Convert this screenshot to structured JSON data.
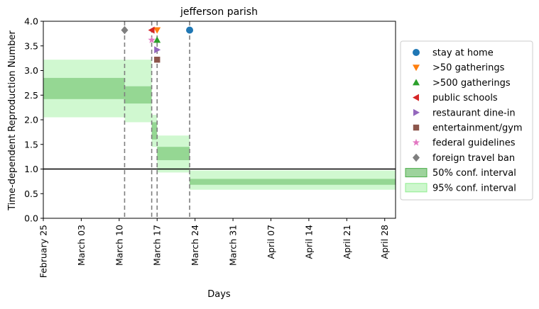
{
  "chart_data": {
    "type": "line",
    "title": "jefferson parish",
    "xlabel": "Days",
    "ylabel": "Time-dependent Reproduction Number",
    "ylim": [
      0,
      4.0
    ],
    "xlim": [
      "2020-02-25",
      "2020-04-30"
    ],
    "y_ticks": [
      0.0,
      0.5,
      1.0,
      1.5,
      2.0,
      2.5,
      3.0,
      3.5,
      4.0
    ],
    "y_tick_labels": [
      "0.0",
      "0.5",
      "1.0",
      "1.5",
      "2.0",
      "2.5",
      "3.0",
      "3.5",
      "4.0"
    ],
    "x_ticks": [
      "2020-02-25",
      "2020-03-03",
      "2020-03-10",
      "2020-03-17",
      "2020-03-24",
      "2020-03-31",
      "2020-04-07",
      "2020-04-14",
      "2020-04-21",
      "2020-04-28"
    ],
    "x_tick_labels": [
      "February 25",
      "March 03",
      "March 10",
      "March 17",
      "March 24",
      "March 31",
      "April 07",
      "April 14",
      "April 21",
      "April 28"
    ],
    "reference_line": {
      "y": 1.0,
      "color": "#000000"
    },
    "grid": false,
    "legend_position": "outside-right",
    "intervals": [
      {
        "start": "2020-02-25",
        "end": "2020-03-11",
        "ci50": [
          2.42,
          2.85
        ],
        "ci95": [
          2.05,
          3.22
        ]
      },
      {
        "start": "2020-03-11",
        "end": "2020-03-16",
        "ci50": [
          2.33,
          2.68
        ],
        "ci95": [
          1.95,
          3.22
        ]
      },
      {
        "start": "2020-03-16",
        "end": "2020-03-17",
        "ci50": [
          1.6,
          1.95
        ],
        "ci95": [
          1.45,
          2.1
        ]
      },
      {
        "start": "2020-03-17",
        "end": "2020-03-23",
        "ci50": [
          1.18,
          1.45
        ],
        "ci95": [
          0.93,
          1.68
        ]
      },
      {
        "start": "2020-03-23",
        "end": "2020-04-30",
        "ci50": [
          0.68,
          0.8
        ],
        "ci95": [
          0.58,
          0.97
        ]
      }
    ],
    "intervention_lines": [
      "2020-03-11",
      "2020-03-16",
      "2020-03-17",
      "2020-03-23"
    ],
    "markers": [
      {
        "name": "stay at home",
        "date": "2020-03-23",
        "y": 3.82,
        "symbol": "circle",
        "color": "#1f77b4"
      },
      {
        "name": ">50 gatherings",
        "date": "2020-03-17",
        "y": 3.82,
        "symbol": "triangle-down",
        "color": "#ff7f0e"
      },
      {
        "name": ">500 gatherings",
        "date": "2020-03-17",
        "y": 3.62,
        "symbol": "triangle-up",
        "color": "#2ca02c"
      },
      {
        "name": "public schools",
        "date": "2020-03-16",
        "y": 3.82,
        "symbol": "triangle-left",
        "color": "#d62728"
      },
      {
        "name": "restaurant dine-in",
        "date": "2020-03-17",
        "y": 3.42,
        "symbol": "triangle-right",
        "color": "#9467bd"
      },
      {
        "name": "entertainment/gym",
        "date": "2020-03-17",
        "y": 3.22,
        "symbol": "square",
        "color": "#8c564b"
      },
      {
        "name": "federal guidelines",
        "date": "2020-03-16",
        "y": 3.62,
        "symbol": "star",
        "color": "#e377c2"
      },
      {
        "name": "foreign travel ban",
        "date": "2020-03-11",
        "y": 3.82,
        "symbol": "diamond",
        "color": "#7f7f7f"
      }
    ],
    "legend": [
      {
        "label": "stay at home",
        "kind": "marker",
        "symbol": "circle",
        "color": "#1f77b4"
      },
      {
        "label": ">50 gatherings",
        "kind": "marker",
        "symbol": "triangle-down",
        "color": "#ff7f0e"
      },
      {
        "label": ">500 gatherings",
        "kind": "marker",
        "symbol": "triangle-up",
        "color": "#2ca02c"
      },
      {
        "label": "public schools",
        "kind": "marker",
        "symbol": "triangle-left",
        "color": "#d62728"
      },
      {
        "label": "restaurant dine-in",
        "kind": "marker",
        "symbol": "triangle-right",
        "color": "#9467bd"
      },
      {
        "label": "entertainment/gym",
        "kind": "marker",
        "symbol": "square",
        "color": "#8c564b"
      },
      {
        "label": "federal guidelines",
        "kind": "marker",
        "symbol": "star",
        "color": "#e377c2"
      },
      {
        "label": "foreign travel ban",
        "kind": "marker",
        "symbol": "diamond",
        "color": "#7f7f7f"
      },
      {
        "label": "50% conf. interval",
        "kind": "patch",
        "color": "#2ca02c"
      },
      {
        "label": "95% conf. interval",
        "kind": "patch",
        "color": "#90ee90"
      }
    ],
    "colors": {
      "ci50": "#4daf4a",
      "ci95": "#90ee90",
      "intervention_line": "#7f7f7f"
    }
  }
}
